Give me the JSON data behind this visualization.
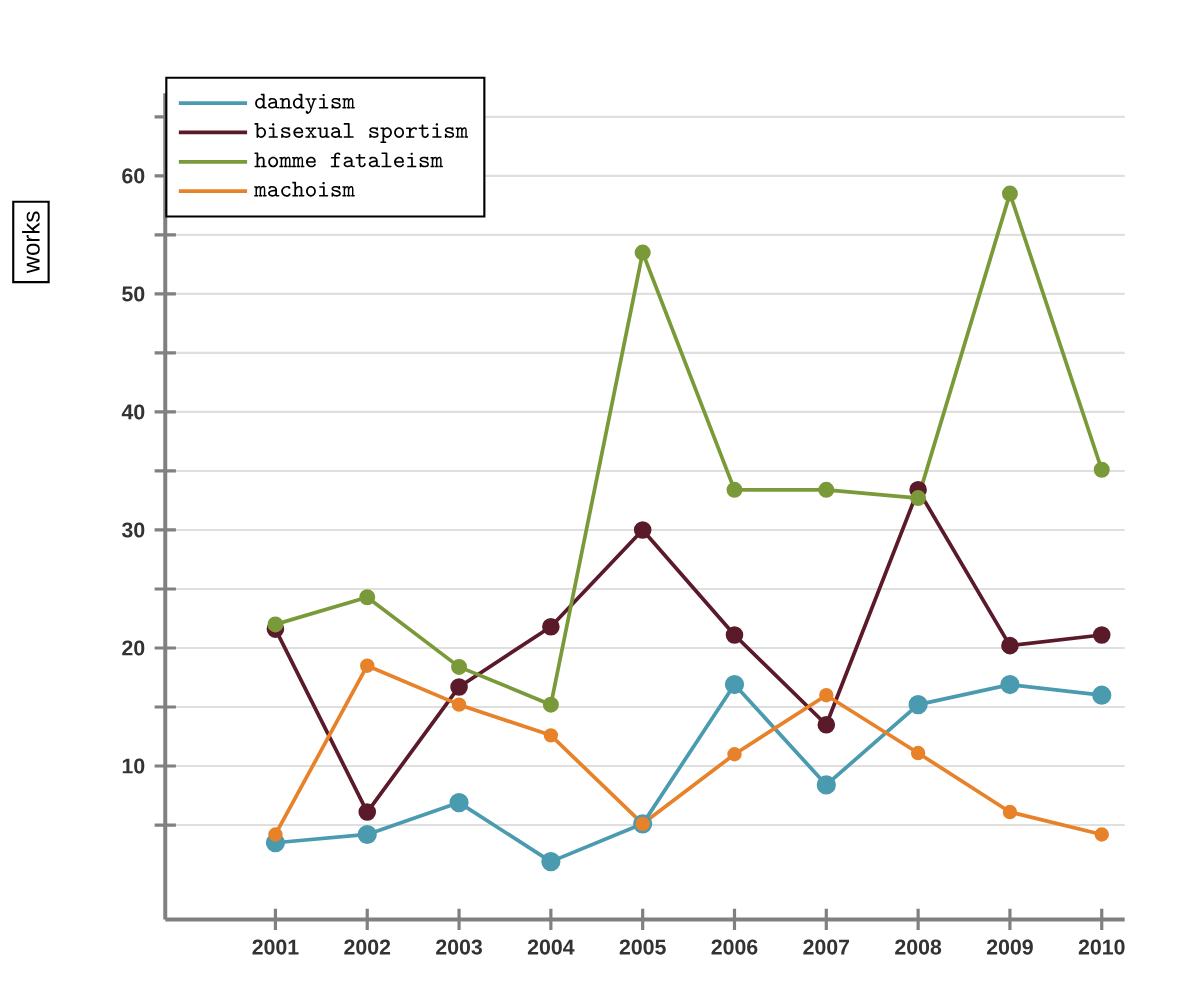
{
  "chart_data": {
    "type": "line",
    "ylabel": "works",
    "categories": [
      "2001",
      "2002",
      "2003",
      "2004",
      "2005",
      "2006",
      "2007",
      "2008",
      "2009",
      "2010"
    ],
    "series": [
      {
        "name": "dandyism",
        "color": "#4a9bb0",
        "values": [
          3.5,
          4.2,
          6.9,
          1.9,
          5.1,
          16.9,
          8.4,
          15.2,
          16.9,
          16.0
        ]
      },
      {
        "name": "bisexual sportism",
        "color": "#5a1a2a",
        "values": [
          21.6,
          6.1,
          16.7,
          21.8,
          30.0,
          21.1,
          13.5,
          33.4,
          20.2,
          21.1
        ]
      },
      {
        "name": "homme fataleism",
        "color": "#7a9a3a",
        "values": [
          22.0,
          24.3,
          18.4,
          15.2,
          53.5,
          33.4,
          33.4,
          32.7,
          58.5,
          35.1
        ]
      },
      {
        "name": "machoism",
        "color": "#e8822a",
        "values": [
          4.2,
          18.5,
          15.2,
          12.6,
          5.1,
          11.0,
          16.0,
          11.1,
          6.1,
          4.2
        ]
      }
    ],
    "ylim": [
      -3,
      67
    ],
    "yticks": [
      {
        "value": 5,
        "label": null
      },
      10,
      {
        "value": 15,
        "label": null
      },
      20,
      {
        "value": 25,
        "label": null
      },
      30,
      {
        "value": 35,
        "label": null
      },
      40,
      {
        "value": 45,
        "label": null
      },
      50,
      {
        "value": 55,
        "label": null
      },
      60,
      {
        "value": 65,
        "label": null
      }
    ],
    "grid": "y",
    "legend": "top left",
    "marker": "circle",
    "line_style": "solid"
  }
}
